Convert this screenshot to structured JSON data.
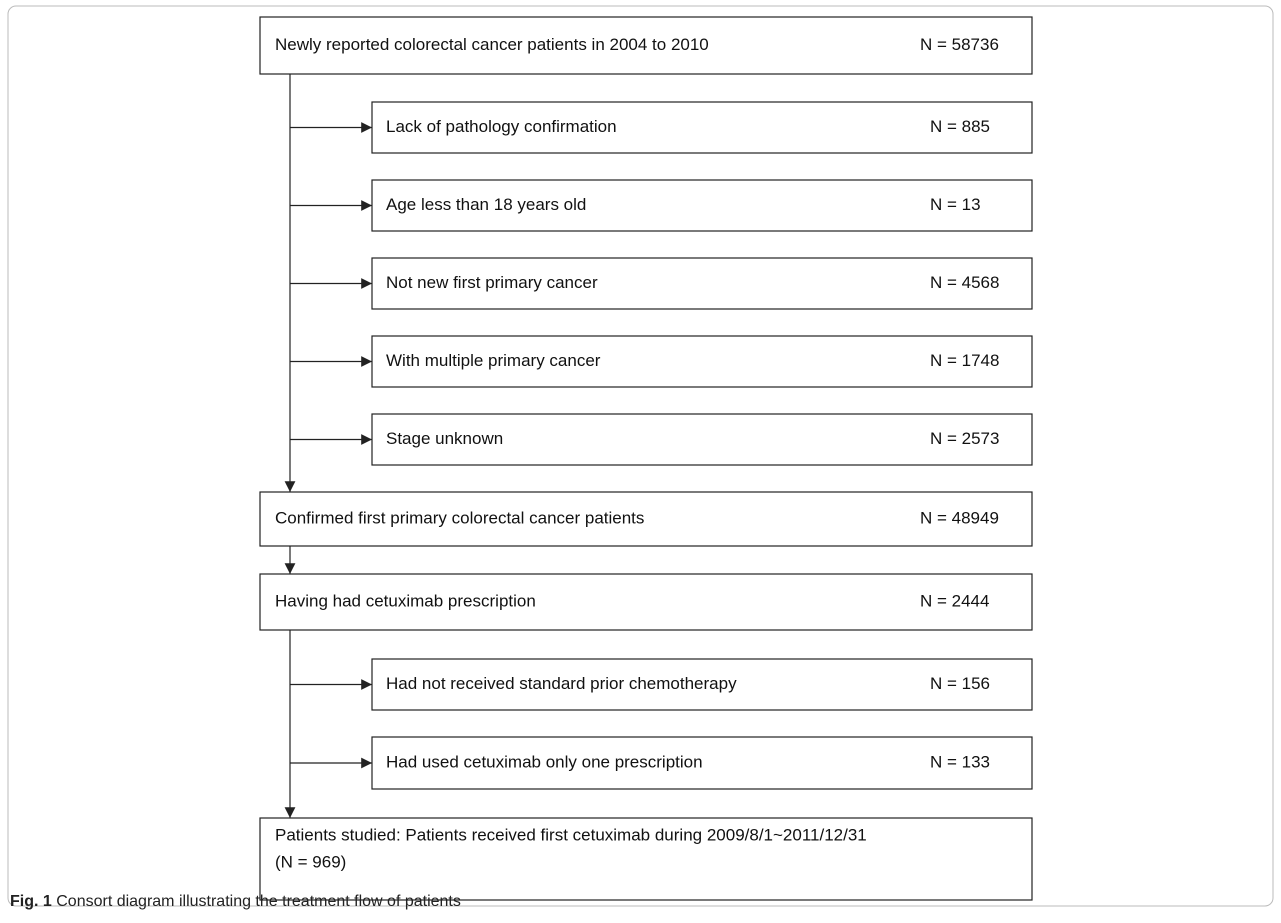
{
  "nodes": [
    {
      "label": "Newly reported colorectal cancer patients in 2004 to 2010",
      "count": "N = 58736"
    },
    {
      "label": "Lack of pathology confirmation",
      "count": "N = 885"
    },
    {
      "label": "Age less than 18 years old",
      "count": "N = 13"
    },
    {
      "label": "Not new first primary cancer",
      "count": "N = 4568"
    },
    {
      "label": "With multiple primary cancer",
      "count": "N = 1748"
    },
    {
      "label": "Stage unknown",
      "count": "N = 2573"
    },
    {
      "label": "Confirmed first primary colorectal cancer patients",
      "count": "N = 48949"
    },
    {
      "label": "Having had cetuximab prescription",
      "count": "N = 2444"
    },
    {
      "label": "Had not received standard prior chemotherapy",
      "count": "N = 156"
    },
    {
      "label": "Had used cetuximab only one prescription",
      "count": "N = 133"
    },
    {
      "label": "Patients studied: Patients received first cetuximab during 2009/8/1~2011/12/31",
      "count": "(N = 969)"
    }
  ],
  "caption": {
    "label": "Fig. 1",
    "text": "Consort diagram illustrating the treatment flow of patients"
  }
}
